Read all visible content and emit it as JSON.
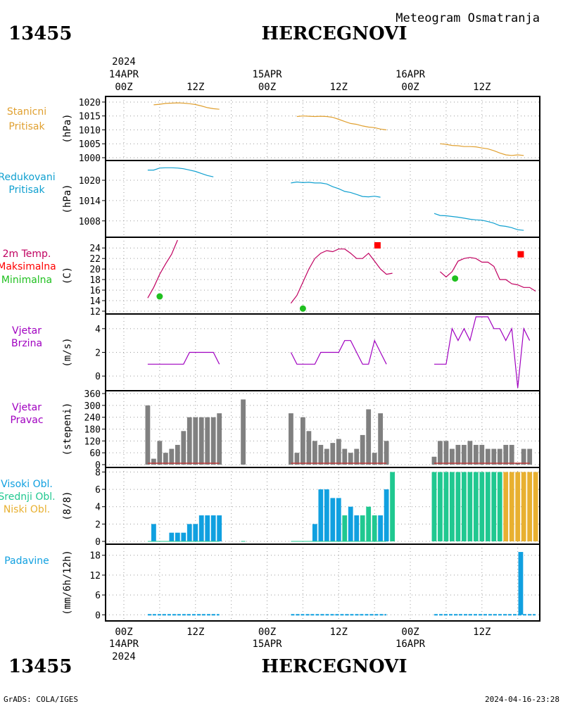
{
  "header": {
    "station_id": "13455",
    "station_name": "HERCEGNOVI",
    "product": "Meteogram Osmatranja"
  },
  "footer": {
    "credit": "GrADS: COLA/IGES",
    "generated": "2024-04-16-23:28"
  },
  "time_axis": {
    "year": "2024",
    "day_labels": [
      "14APR",
      "15APR",
      "16APR"
    ],
    "top_ticks": [
      "00Z",
      "12Z",
      "00Z",
      "12Z",
      "00Z",
      "12Z"
    ],
    "bottom_ticks": [
      "00Z",
      "12Z",
      "00Z",
      "12Z",
      "00Z",
      "12Z"
    ]
  },
  "colors": {
    "station_pressure": "#e0a030",
    "reduced_pressure": "#10a0d0",
    "temperature": "#c00060",
    "temp_max": "#ff0000",
    "temp_min": "#20c020",
    "wind": "#a000c0",
    "wind_direction": "#808080",
    "high_clouds": "#10a0e0",
    "mid_clouds": "#20c890",
    "low_clouds": "#e8b030",
    "precipitation": "#10a0e0",
    "calm_line": "#c04040"
  },
  "chart_data": [
    {
      "id": "station_pressure",
      "type": "line",
      "label": [
        "Stanicni",
        "Pritisak"
      ],
      "ylabel": "(hPa)",
      "ylim": [
        1000,
        1021
      ],
      "yticks": [
        1000,
        1005,
        1010,
        1015,
        1020
      ],
      "x_unit": "hours since 14APR 00Z",
      "segments": [
        [
          [
            5,
            1019
          ],
          [
            6,
            1019.2
          ],
          [
            7,
            1019.5
          ],
          [
            8,
            1019.6
          ],
          [
            9,
            1019.7
          ],
          [
            10,
            1019.6
          ],
          [
            11,
            1019.4
          ],
          [
            12,
            1019.1
          ],
          [
            13,
            1018.6
          ],
          [
            14,
            1018
          ],
          [
            15,
            1017.6
          ],
          [
            16,
            1017.4
          ]
        ],
        [
          [
            29,
            1014.8
          ],
          [
            30,
            1015
          ],
          [
            31,
            1014.9
          ],
          [
            32,
            1014.8
          ],
          [
            33,
            1014.9
          ],
          [
            34,
            1014.8
          ],
          [
            35,
            1014.5
          ],
          [
            36,
            1013.8
          ],
          [
            37,
            1013
          ],
          [
            38,
            1012.3
          ],
          [
            39,
            1012
          ],
          [
            40,
            1011.4
          ],
          [
            41,
            1011
          ],
          [
            42,
            1010.8
          ],
          [
            43,
            1010.3
          ],
          [
            44,
            1010
          ]
        ],
        [
          [
            53,
            1005
          ],
          [
            54,
            1004.8
          ],
          [
            55,
            1004.4
          ],
          [
            56,
            1004.3
          ],
          [
            57,
            1004
          ],
          [
            58,
            1004
          ],
          [
            59,
            1003.9
          ],
          [
            60,
            1003.5
          ],
          [
            61,
            1003.2
          ],
          [
            62,
            1002.5
          ],
          [
            63,
            1001.7
          ],
          [
            64,
            1001
          ],
          [
            65,
            1000.8
          ],
          [
            66,
            1001
          ],
          [
            67,
            1000.8
          ]
        ]
      ]
    },
    {
      "id": "reduced_pressure",
      "type": "line",
      "label": [
        "Redukovani",
        "Pritisak"
      ],
      "ylabel": "(hPa)",
      "ylim": [
        1004,
        1025
      ],
      "yticks": [
        1008,
        1014,
        1020
      ],
      "x_unit": "hours since 14APR 00Z",
      "segments": [
        [
          [
            4,
            1023
          ],
          [
            5,
            1023
          ],
          [
            6,
            1023.6
          ],
          [
            7,
            1023.7
          ],
          [
            8,
            1023.7
          ],
          [
            9,
            1023.6
          ],
          [
            10,
            1023.4
          ],
          [
            11,
            1023
          ],
          [
            12,
            1022.6
          ],
          [
            13,
            1022
          ],
          [
            14,
            1021.4
          ],
          [
            15,
            1021
          ]
        ],
        [
          [
            28,
            1019.2
          ],
          [
            29,
            1019.5
          ],
          [
            30,
            1019.3
          ],
          [
            31,
            1019.4
          ],
          [
            32,
            1019.2
          ],
          [
            33,
            1019.2
          ],
          [
            34,
            1018.9
          ],
          [
            35,
            1018.1
          ],
          [
            36,
            1017.5
          ],
          [
            37,
            1016.7
          ],
          [
            38,
            1016.4
          ],
          [
            39,
            1015.8
          ],
          [
            40,
            1015.2
          ],
          [
            41,
            1015.1
          ],
          [
            42,
            1015.3
          ],
          [
            43,
            1015
          ]
        ],
        [
          [
            52,
            1010.2
          ],
          [
            53,
            1009.6
          ],
          [
            54,
            1009.5
          ],
          [
            55,
            1009.3
          ],
          [
            56,
            1009.1
          ],
          [
            57,
            1008.8
          ],
          [
            58,
            1008.5
          ],
          [
            59,
            1008.3
          ],
          [
            60,
            1008.2
          ],
          [
            61,
            1007.8
          ],
          [
            62,
            1007.3
          ],
          [
            63,
            1006.6
          ],
          [
            64,
            1006.4
          ],
          [
            65,
            1006
          ],
          [
            66,
            1005.4
          ],
          [
            67,
            1005.2
          ]
        ]
      ]
    },
    {
      "id": "temperature",
      "type": "line",
      "label": [
        "2m Temp.",
        "Maksimalna",
        "Minimalna"
      ],
      "ylabel": "(C)",
      "ylim": [
        12,
        25.5
      ],
      "yticks": [
        12,
        14,
        16,
        18,
        20,
        22,
        24
      ],
      "x_unit": "hours since 14APR 00Z",
      "segments": [
        [
          [
            4,
            14.5
          ],
          [
            5,
            16.5
          ],
          [
            6,
            19
          ],
          [
            7,
            21
          ],
          [
            8,
            22.8
          ],
          [
            9,
            25.5
          ]
        ],
        [
          [
            28,
            13.5
          ],
          [
            29,
            15
          ],
          [
            30,
            17.5
          ],
          [
            31,
            20
          ],
          [
            32,
            22
          ],
          [
            33,
            23
          ],
          [
            34,
            23.5
          ],
          [
            35,
            23.3
          ],
          [
            36,
            23.8
          ],
          [
            37,
            23.8
          ],
          [
            38,
            23
          ],
          [
            39,
            22
          ],
          [
            40,
            22
          ],
          [
            41,
            23
          ],
          [
            42,
            21.5
          ],
          [
            43,
            20
          ],
          [
            44,
            19
          ],
          [
            45,
            19.2
          ]
        ],
        [
          [
            53,
            19.5
          ],
          [
            54,
            18.5
          ],
          [
            55,
            19.5
          ],
          [
            56,
            21.5
          ],
          [
            57,
            22
          ],
          [
            58,
            22.2
          ],
          [
            59,
            22
          ],
          [
            60,
            21.3
          ],
          [
            61,
            21.3
          ],
          [
            62,
            20.5
          ],
          [
            63,
            18
          ],
          [
            64,
            18
          ],
          [
            65,
            17.2
          ],
          [
            66,
            17
          ],
          [
            67,
            16.5
          ],
          [
            68,
            16.5
          ],
          [
            69,
            15.8
          ]
        ]
      ],
      "maxima": [
        [
          42.5,
          24.5
        ],
        [
          66.5,
          22.8
        ]
      ],
      "minima": [
        [
          6,
          14.8
        ],
        [
          30,
          12.5
        ],
        [
          55.5,
          18.2
        ]
      ]
    },
    {
      "id": "wind_speed",
      "type": "line",
      "label": [
        "Vjetar",
        "Brzina"
      ],
      "ylabel": "(m/s)",
      "ylim": [
        -1,
        5
      ],
      "yticks": [
        0,
        2,
        4
      ],
      "x_unit": "hours since 14APR 00Z",
      "segments": [
        [
          [
            4,
            1
          ],
          [
            10,
            1
          ],
          [
            11,
            2
          ],
          [
            15,
            2
          ],
          [
            16,
            1
          ]
        ],
        [
          [
            28,
            2
          ],
          [
            29,
            1
          ],
          [
            32,
            1
          ],
          [
            33,
            2
          ],
          [
            36,
            2
          ],
          [
            37,
            3
          ],
          [
            38,
            3
          ],
          [
            39,
            2
          ],
          [
            40,
            1
          ],
          [
            41,
            1
          ],
          [
            42,
            3
          ],
          [
            43,
            2
          ],
          [
            44,
            1
          ]
        ],
        [
          [
            52,
            1
          ],
          [
            54,
            1
          ],
          [
            55,
            4
          ],
          [
            56,
            3
          ],
          [
            57,
            4
          ],
          [
            58,
            3
          ],
          [
            59,
            5
          ],
          [
            61,
            5
          ],
          [
            62,
            4
          ],
          [
            63,
            4
          ],
          [
            64,
            3
          ],
          [
            65,
            4
          ],
          [
            66,
            -1
          ],
          [
            67,
            4
          ],
          [
            68,
            3
          ]
        ]
      ]
    },
    {
      "id": "wind_direction",
      "type": "bar",
      "label": [
        "Vjetar",
        "Pravac"
      ],
      "ylabel": "(stepeni)",
      "ylim": [
        0,
        360
      ],
      "yticks": [
        0,
        60,
        120,
        180,
        240,
        300,
        360
      ],
      "x_unit": "hours since 14APR 00Z",
      "bars": [
        [
          4,
          300
        ],
        [
          5,
          30
        ],
        [
          6,
          120
        ],
        [
          7,
          60
        ],
        [
          8,
          80
        ],
        [
          9,
          100
        ],
        [
          10,
          170
        ],
        [
          11,
          240
        ],
        [
          12,
          240
        ],
        [
          13,
          240
        ],
        [
          14,
          240
        ],
        [
          15,
          240
        ],
        [
          16,
          260
        ],
        [
          20,
          330
        ],
        [
          28,
          260
        ],
        [
          29,
          60
        ],
        [
          30,
          240
        ],
        [
          31,
          170
        ],
        [
          32,
          120
        ],
        [
          33,
          100
        ],
        [
          34,
          80
        ],
        [
          35,
          110
        ],
        [
          36,
          130
        ],
        [
          37,
          80
        ],
        [
          38,
          60
        ],
        [
          39,
          80
        ],
        [
          40,
          150
        ],
        [
          41,
          280
        ],
        [
          42,
          60
        ],
        [
          43,
          260
        ],
        [
          44,
          120
        ],
        [
          52,
          40
        ],
        [
          53,
          120
        ],
        [
          54,
          120
        ],
        [
          55,
          80
        ],
        [
          56,
          100
        ],
        [
          57,
          100
        ],
        [
          58,
          120
        ],
        [
          59,
          100
        ],
        [
          60,
          100
        ],
        [
          61,
          80
        ],
        [
          62,
          80
        ],
        [
          63,
          80
        ],
        [
          64,
          100
        ],
        [
          65,
          100
        ],
        [
          66,
          10
        ],
        [
          67,
          80
        ],
        [
          68,
          80
        ]
      ],
      "calm_segments": [
        [
          4,
          16
        ],
        [
          28,
          44
        ],
        [
          52,
          68
        ]
      ]
    },
    {
      "id": "clouds",
      "type": "bar",
      "label": [
        "Visoki Obl.",
        "Srednji Obl.",
        "Niski Obl."
      ],
      "ylabel": "(8/8)",
      "ylim": [
        0,
        8.2
      ],
      "yticks": [
        0,
        2,
        4,
        6,
        8
      ],
      "x_unit": "hours since 14APR 00Z",
      "series": [
        {
          "name": "Visoki Obl.",
          "key": "high_clouds",
          "bars": [
            [
              5,
              2
            ],
            [
              8,
              1
            ],
            [
              9,
              1
            ],
            [
              10,
              1
            ],
            [
              11,
              2
            ],
            [
              12,
              2
            ],
            [
              13,
              3
            ],
            [
              14,
              3
            ],
            [
              15,
              3
            ],
            [
              16,
              3
            ],
            [
              32,
              2
            ],
            [
              33,
              6
            ],
            [
              34,
              6
            ],
            [
              35,
              5
            ],
            [
              36,
              5
            ],
            [
              38,
              4
            ],
            [
              39,
              3
            ],
            [
              43,
              3
            ],
            [
              44,
              6
            ]
          ]
        },
        {
          "name": "Srednji Obl.",
          "key": "mid_clouds",
          "bars": [
            [
              37,
              3
            ],
            [
              40,
              3
            ],
            [
              41,
              4
            ],
            [
              42,
              3
            ],
            [
              45,
              8
            ],
            [
              52,
              8
            ],
            [
              53,
              8
            ],
            [
              54,
              8
            ],
            [
              55,
              8
            ],
            [
              56,
              8
            ],
            [
              57,
              8
            ],
            [
              58,
              8
            ],
            [
              59,
              8
            ],
            [
              60,
              8
            ],
            [
              61,
              8
            ],
            [
              62,
              8
            ],
            [
              63,
              8
            ]
          ]
        },
        {
          "name": "Niski Obl.",
          "key": "low_clouds",
          "bars": [
            [
              64,
              8
            ],
            [
              65,
              8
            ],
            [
              66,
              8
            ],
            [
              67,
              8
            ],
            [
              68,
              8
            ],
            [
              69,
              8
            ]
          ]
        }
      ]
    },
    {
      "id": "precipitation",
      "type": "bar",
      "label": [
        "Padavine"
      ],
      "ylabel": "(mm/6h/12h)",
      "ylim": [
        -1,
        20.5
      ],
      "yticks": [
        0,
        6,
        12,
        18
      ],
      "x_unit": "hours since 14APR 00Z",
      "bars": [
        [
          66.5,
          19
        ]
      ],
      "zero_segments": [
        [
          4,
          16
        ],
        [
          28,
          44
        ],
        [
          52,
          69
        ]
      ]
    }
  ]
}
